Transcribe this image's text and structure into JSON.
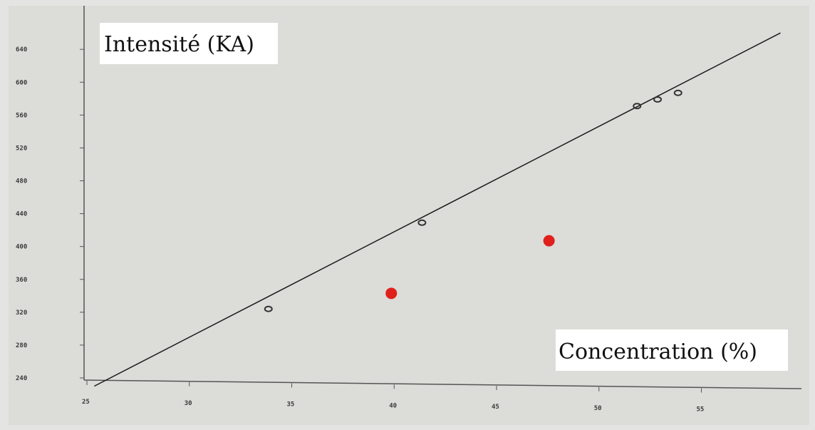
{
  "chart_data": {
    "type": "scatter",
    "title": "Intensité (KA)",
    "xlabel": "Concentration (%)",
    "ylabel": "Intensité (KA)",
    "xlim": [
      25,
      59
    ],
    "ylim": [
      240,
      650
    ],
    "x_ticks": [
      25,
      30,
      35,
      40,
      45,
      50,
      55
    ],
    "x_tick_labels": [
      "25",
      "30",
      "35",
      "40",
      "45",
      "50",
      "55"
    ],
    "y_ticks": [
      240,
      280,
      320,
      360,
      400,
      440,
      480,
      520,
      560,
      600,
      640
    ],
    "y_tick_labels": [
      "240",
      "280",
      "320",
      "360",
      "400",
      "440",
      "480",
      "520",
      "560",
      "600",
      "640"
    ],
    "grid": false,
    "legend": "none",
    "series": [
      {
        "marker": "small-dark",
        "color": "#333333",
        "points": [
          {
            "x": 34.0,
            "y": 324
          },
          {
            "x": 41.5,
            "y": 429
          },
          {
            "x": 52.0,
            "y": 571
          },
          {
            "x": 53.0,
            "y": 579
          },
          {
            "x": 54.0,
            "y": 587
          }
        ]
      },
      {
        "marker": "red-dot",
        "color": "#e0201b",
        "points": [
          {
            "x": 40.0,
            "y": 343
          },
          {
            "x": 47.7,
            "y": 407
          }
        ]
      }
    ],
    "line": {
      "color": "#1a1a1a",
      "points": [
        {
          "x": 25.5,
          "y": 230
        },
        {
          "x": 59.0,
          "y": 660
        }
      ]
    }
  }
}
